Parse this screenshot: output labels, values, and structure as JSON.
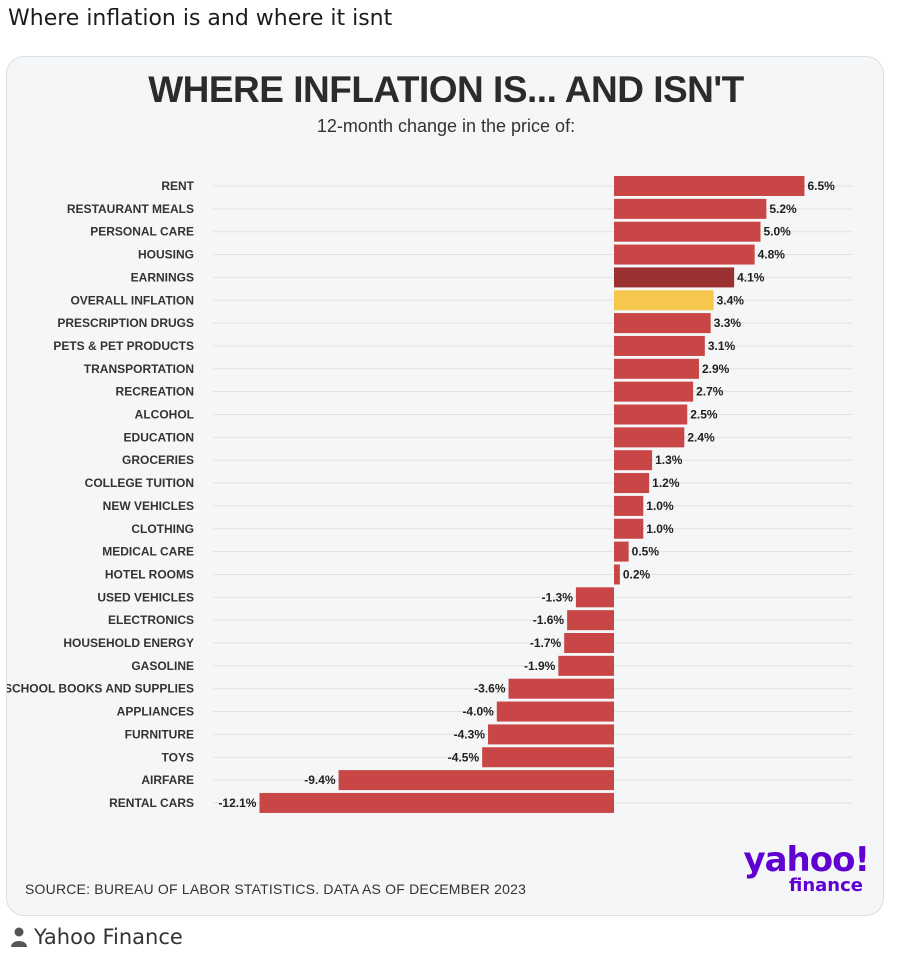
{
  "post": {
    "title": "Where inflation is and where it isnt",
    "author": "Yahoo Finance"
  },
  "icons": {
    "author": "person-icon"
  },
  "brand": {
    "logo_main": "yahoo!",
    "logo_sub": "finance",
    "color": "#6001d2"
  },
  "colors": {
    "bar": "#c94646",
    "earnings": "#9b3030",
    "overall": "#f5c84d",
    "grid": "#e2e2e2"
  },
  "chart_data": {
    "type": "bar",
    "orientation": "horizontal",
    "title": "WHERE INFLATION IS... AND ISN'T",
    "subtitle": "12-month change in the price of:",
    "source": "SOURCE: BUREAU OF LABOR STATISTICS. DATA AS OF DECEMBER 2023",
    "categories": [
      "RENT",
      "RESTAURANT MEALS",
      "PERSONAL CARE",
      "HOUSING",
      "EARNINGS",
      "OVERALL INFLATION",
      "PRESCRIPTION DRUGS",
      "PETS & PET PRODUCTS",
      "TRANSPORTATION",
      "RECREATION",
      "ALCOHOL",
      "EDUCATION",
      "GROCERIES",
      "COLLEGE TUITION",
      "NEW VEHICLES",
      "CLOTHING",
      "MEDICAL CARE",
      "HOTEL ROOMS",
      "USED VEHICLES",
      "ELECTRONICS",
      "HOUSEHOLD ENERGY",
      "GASOLINE",
      "SCHOOL BOOKS AND SUPPLIES",
      "APPLIANCES",
      "FURNITURE",
      "TOYS",
      "AIRFARE",
      "RENTAL CARS"
    ],
    "values": [
      6.5,
      5.2,
      5.0,
      4.8,
      4.1,
      3.4,
      3.3,
      3.1,
      2.9,
      2.7,
      2.5,
      2.4,
      1.3,
      1.2,
      1.0,
      1.0,
      0.5,
      0.2,
      -1.3,
      -1.6,
      -1.7,
      -1.9,
      -3.6,
      -4.0,
      -4.3,
      -4.5,
      -9.4,
      -12.1
    ],
    "labels": [
      "6.5%",
      "5.2%",
      "5.0%",
      "4.8%",
      "4.1%",
      "3.4%",
      "3.3%",
      "3.1%",
      "2.9%",
      "2.7%",
      "2.5%",
      "2.4%",
      "1.3%",
      "1.2%",
      "1.0%",
      "1.0%",
      "0.5%",
      "0.2%",
      "-1.3%",
      "-1.6%",
      "-1.7%",
      "-1.9%",
      "-3.6%",
      "-4.0%",
      "-4.3%",
      "-4.5%",
      "-9.4%",
      "-12.1%"
    ],
    "highlight": {
      "EARNINGS": "earnings",
      "OVERALL INFLATION": "overall"
    },
    "xlim": [
      -12.1,
      6.5
    ],
    "grid": true,
    "legend": "none"
  }
}
